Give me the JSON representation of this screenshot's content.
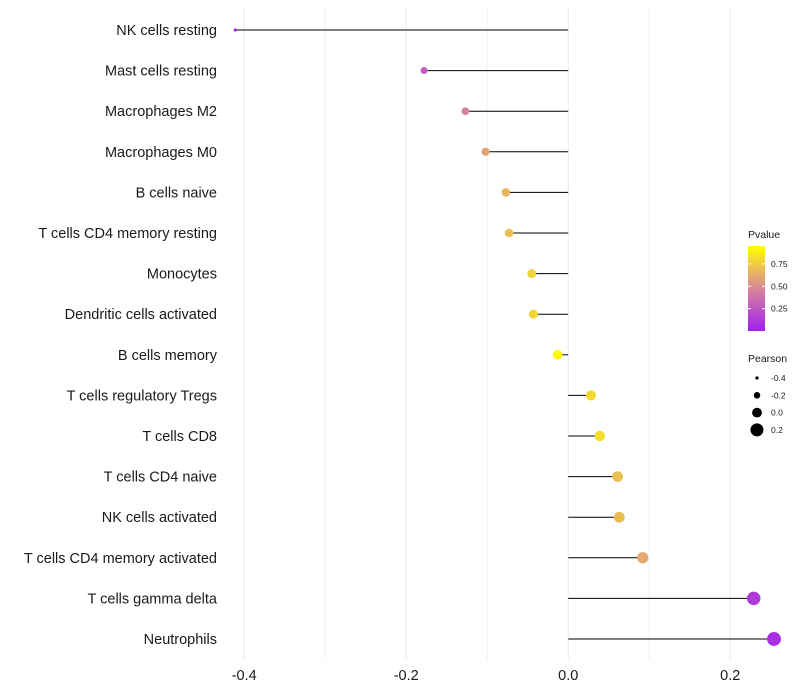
{
  "chart_data": {
    "type": "lollipop",
    "title": "",
    "xlabel": "",
    "ylabel": "",
    "xlim": [
      -0.42,
      0.275
    ],
    "x_ticks": [
      -0.4,
      -0.2,
      0.0,
      0.2
    ],
    "x_tick_labels": [
      "-0.4",
      "-0.2",
      "0.0",
      "0.2"
    ],
    "grid": true,
    "categories": [
      "NK cells resting",
      "Mast cells resting",
      "Macrophages M2",
      "Macrophages M0",
      "B cells naive",
      "T cells CD4 memory resting",
      "Monocytes",
      "Dendritic cells activated",
      "B cells memory",
      "T cells regulatory  Tregs ",
      "T cells CD8",
      "T cells CD4 naive",
      "NK cells activated",
      "T cells CD4 memory activated",
      "T cells gamma delta",
      "Neutrophils"
    ],
    "pearson": [
      -0.411,
      -0.178,
      -0.127,
      -0.102,
      -0.077,
      -0.073,
      -0.045,
      -0.043,
      -0.013,
      0.028,
      0.039,
      0.061,
      0.063,
      0.092,
      0.229,
      0.254
    ],
    "pvalue": [
      0.02,
      0.28,
      0.45,
      0.58,
      0.66,
      0.7,
      0.78,
      0.79,
      0.92,
      0.8,
      0.82,
      0.7,
      0.69,
      0.6,
      0.12,
      0.07
    ],
    "legend_pvalue": {
      "title": "Pvalue",
      "ticks": [
        0.75,
        0.5,
        0.25
      ],
      "tick_labels": [
        "0.75",
        "0.50",
        "0.25"
      ],
      "range": [
        0,
        0.95
      ],
      "color_low": "#a020f0",
      "color_mid": "#d9879a",
      "color_high": "#ffff00"
    },
    "legend_pearson": {
      "title": "Pearson",
      "values": [
        -0.4,
        -0.2,
        0.0,
        0.2
      ],
      "labels": [
        "-0.4",
        "-0.2",
        "0.0",
        "0.2"
      ]
    },
    "legend_placement": "right"
  }
}
